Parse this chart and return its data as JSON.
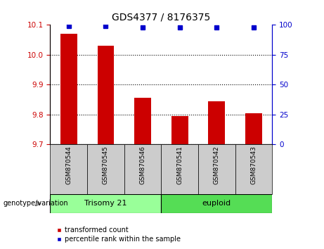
{
  "title": "GDS4377 / 8176375",
  "categories": [
    "GSM870544",
    "GSM870545",
    "GSM870546",
    "GSM870541",
    "GSM870542",
    "GSM870543"
  ],
  "bar_values": [
    10.07,
    10.03,
    9.855,
    9.795,
    9.845,
    9.805
  ],
  "percentile_values": [
    99,
    99,
    98,
    98,
    98,
    98
  ],
  "ylim_left": [
    9.7,
    10.1
  ],
  "ylim_right": [
    0,
    100
  ],
  "yticks_left": [
    9.7,
    9.8,
    9.9,
    10.0,
    10.1
  ],
  "yticks_right": [
    0,
    25,
    50,
    75,
    100
  ],
  "bar_color": "#cc0000",
  "dot_color": "#0000cc",
  "bar_width": 0.45,
  "group1_label": "Trisomy 21",
  "group2_label": "euploid",
  "group1_indices": [
    0,
    1,
    2
  ],
  "group2_indices": [
    3,
    4,
    5
  ],
  "group1_color": "#99ff99",
  "group2_color": "#55dd55",
  "legend_bar_label": "transformed count",
  "legend_dot_label": "percentile rank within the sample",
  "genotype_label": "genotype/variation",
  "tick_label_color_left": "#cc0000",
  "tick_label_color_right": "#0000cc",
  "xticklabel_bg": "#cccccc",
  "gap_color": "#ffffff"
}
